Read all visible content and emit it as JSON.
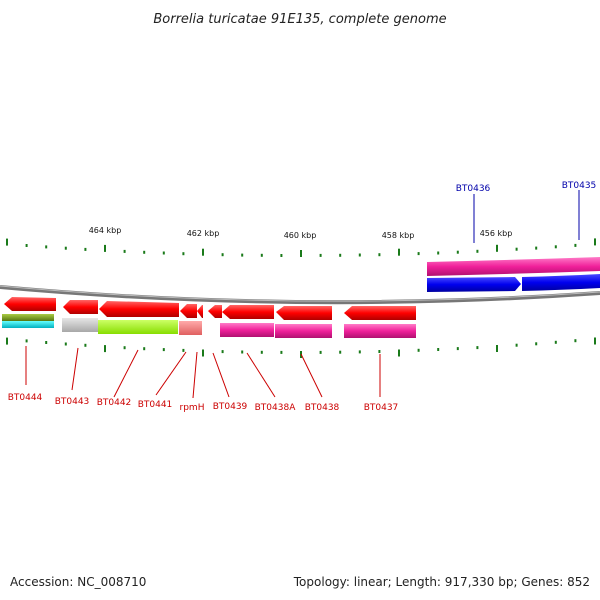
{
  "title": "Borrelia turicatae 91E135, complete genome",
  "footer": {
    "accession": "Accession: NC_008710",
    "summary": "Topology: linear; Length: 917,330 bp; Genes: 852"
  },
  "scale_labels": [
    "464 kbp",
    "462 kbp",
    "460 kbp",
    "458 kbp",
    "456 kbp"
  ],
  "genes_top": [
    "BT0436",
    "BT0435"
  ],
  "genes_bottom": [
    "BT0444",
    "BT0443",
    "BT0442",
    "BT0441",
    "rpmH",
    "BT0439",
    "BT0438A",
    "BT0438",
    "BT0437"
  ],
  "colors": {
    "forward_cds": "#ff0000",
    "reverse_cds": "#ff0000",
    "forward_top": "#ff2ea0",
    "forward_top_blue": "#0000ee",
    "backbone": "#888888",
    "tick": "#1a7a1a",
    "label_red": "#cc0000",
    "label_blue": "#0000aa"
  }
}
